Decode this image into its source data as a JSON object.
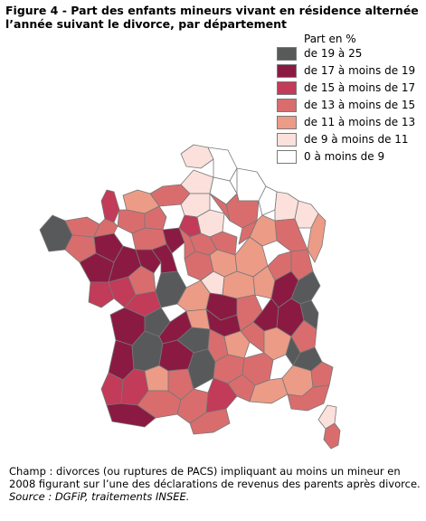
{
  "title": "Figure 4 - Part des enfants mineurs vivant en résidence alternée l’année suivant le divorce, par département",
  "legend": {
    "title": "Part en %",
    "items": [
      {
        "label": "de 19 à 25",
        "color": "#58595b"
      },
      {
        "label": "de 17 à moins de 19",
        "color": "#8b1a42"
      },
      {
        "label": "de 15 à moins de 17",
        "color": "#c23b58"
      },
      {
        "label": "de 13 à moins de 15",
        "color": "#d96d6d"
      },
      {
        "label": "de 11 à moins de 13",
        "color": "#ec9b86"
      },
      {
        "label": "de 9 à moins de 11",
        "color": "#fbe0dc"
      },
      {
        "label": "0 à moins de 9",
        "color": "#ffffff"
      }
    ]
  },
  "footer": {
    "champ": "Champ : divorces (ou ruptures de PACS) impliquant au moins un mineur en 2008 figurant sur l’une des déclarations de revenus des parents après divorce.",
    "source": "Source : DGFiP, traitements INSEE."
  }
}
